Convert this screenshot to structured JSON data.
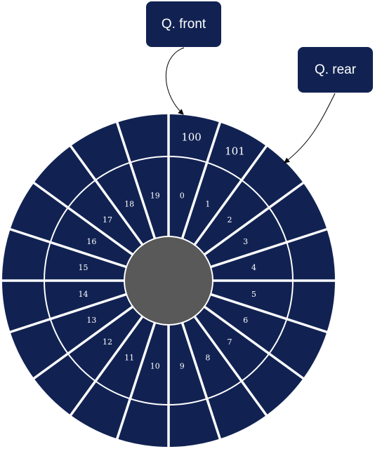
{
  "labels": {
    "front": "Q. front",
    "rear": "Q. rear"
  },
  "ring": {
    "slots": 20,
    "indices": [
      "0",
      "1",
      "2",
      "3",
      "4",
      "5",
      "6",
      "7",
      "8",
      "9",
      "10",
      "11",
      "12",
      "13",
      "14",
      "15",
      "16",
      "17",
      "18",
      "19"
    ],
    "values": [
      "100",
      "101"
    ],
    "colors": {
      "segment": "#112252",
      "divider": "#ffffff",
      "hub": "#595959",
      "arrow": "#000000"
    }
  }
}
